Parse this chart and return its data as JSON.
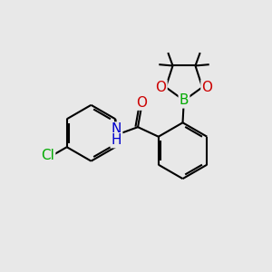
{
  "background_color": "#e8e8e8",
  "bond_color": "#000000",
  "bond_width": 1.5,
  "atom_colors": {
    "N": "#0000cc",
    "O": "#cc0000",
    "B": "#00aa00",
    "Cl": "#00aa00"
  },
  "font_size_atoms": 11
}
